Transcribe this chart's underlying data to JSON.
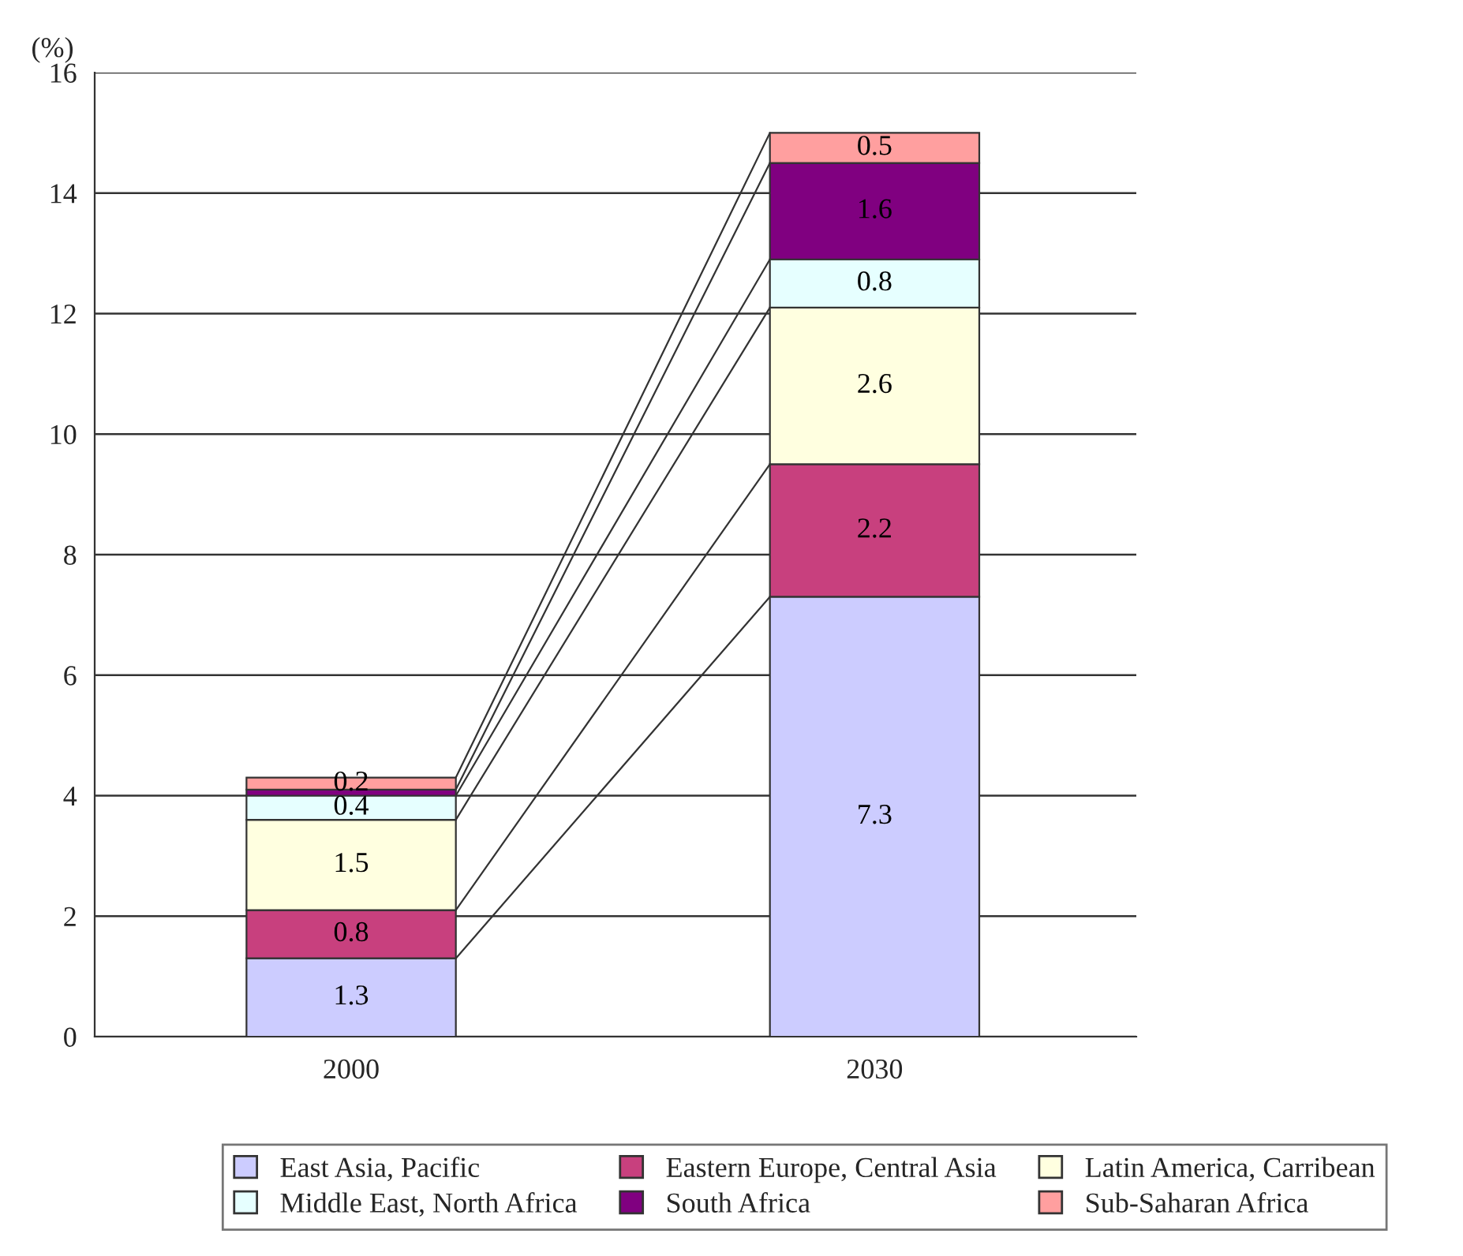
{
  "chart_data": {
    "type": "bar",
    "stacked": true,
    "ylabel": "(%)",
    "categories": [
      "2000",
      "2030"
    ],
    "series": [
      {
        "name": "East Asia, Pacific",
        "color": "#ccccff",
        "values": [
          1.3,
          7.3
        ],
        "value_labels": [
          "1.3",
          "7.3"
        ]
      },
      {
        "name": "Eastern Europe, Central Asia",
        "color": "#c8407e",
        "values": [
          0.8,
          2.2
        ],
        "value_labels": [
          "0.8",
          "2.2"
        ]
      },
      {
        "name": "Latin America, Carribean",
        "color": "#ffffe0",
        "values": [
          1.5,
          2.6
        ],
        "value_labels": [
          "1.5",
          "2.6"
        ]
      },
      {
        "name": "Middle East, North Africa",
        "color": "#e6ffff",
        "values": [
          0.4,
          0.8
        ],
        "value_labels": [
          "0.4",
          "0.8"
        ]
      },
      {
        "name": "South Africa",
        "color": "#800080",
        "values": [
          0.1,
          1.6
        ],
        "value_labels": [
          null,
          "1.6"
        ]
      },
      {
        "name": "Sub-Saharan Africa",
        "color": "#ff9f9f",
        "values": [
          0.2,
          0.5
        ],
        "value_labels": [
          "0.2",
          "0.5"
        ]
      }
    ],
    "ylim": [
      0,
      16
    ],
    "yticks": [
      0,
      2,
      4,
      6,
      8,
      10,
      12,
      14,
      16
    ],
    "grid": "y",
    "legend": "bottom"
  }
}
